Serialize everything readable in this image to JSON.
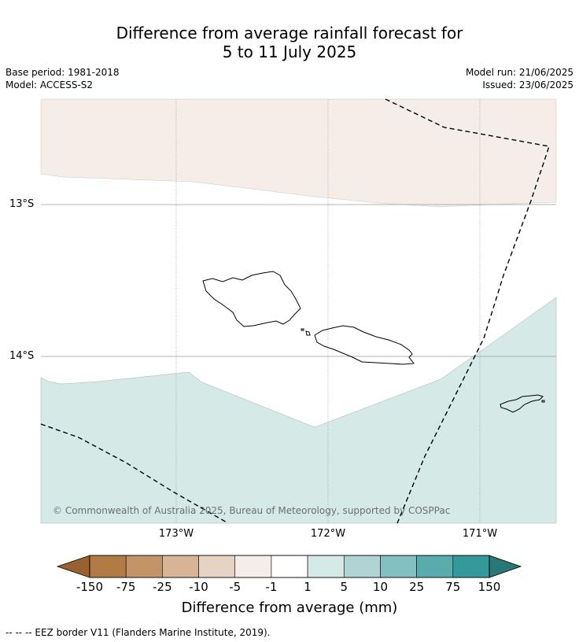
{
  "title": {
    "line1": "Difference from average rainfall forecast for",
    "line2": "5 to 11 July 2025"
  },
  "meta": {
    "base_period": "Base period: 1981-2018",
    "model": "Model: ACCESS-S2",
    "model_run": "Model run: 21/06/2025",
    "issued": "Issued: 23/06/2025"
  },
  "map": {
    "lat_labels": [
      "13°S",
      "14°S"
    ],
    "lon_labels": [
      "173°W",
      "172°W",
      "171°W"
    ],
    "copyright": "© Commonwealth of Australia 2025, Bureau of Meteorology, supported by COSPPac",
    "region_colors": {
      "dry_band_north": "#f5ede8",
      "neutral": "#ffffff",
      "wet_band_south": "#d5e9e7"
    }
  },
  "colorbar": {
    "ticks": [
      "-150",
      "-75",
      "-25",
      "-10",
      "-5",
      "-1",
      "1",
      "5",
      "10",
      "25",
      "75",
      "150"
    ],
    "colors": [
      "#9a6130",
      "#b27a45",
      "#c39467",
      "#d6b495",
      "#e7d3c3",
      "#f5ede8",
      "#ffffff",
      "#d5e9e7",
      "#afd4d3",
      "#83c1c1",
      "#5aacac",
      "#339999",
      "#2a7777"
    ],
    "label": "Difference from average (mm)"
  },
  "footnote": "--  --  -- EEZ border V11 (Flanders Marine Institute, 2019)."
}
